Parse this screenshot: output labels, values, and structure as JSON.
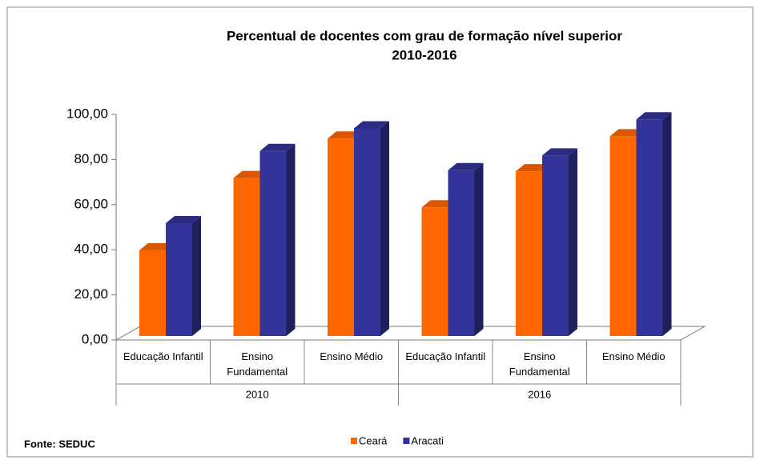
{
  "chart_data": {
    "type": "bar3d",
    "title": "Percentual de docentes com grau de formação nível superior",
    "subtitle": "2010-2016",
    "categories": [
      "Educação Infantil",
      "Ensino Fundamental",
      "Ensino Médio",
      "Educação Infantil",
      "Ensino Fundamental",
      "Ensino Médio"
    ],
    "x_groups": [
      "2010",
      "2016"
    ],
    "series": [
      {
        "name": "Ceará",
        "color": "#ff6600",
        "values": [
          38,
          70,
          87.5,
          57,
          73,
          88.5
        ]
      },
      {
        "name": "Aracati",
        "color": "#333399",
        "values": [
          50,
          82,
          92,
          73.5,
          80,
          96
        ]
      }
    ],
    "ylim": [
      0,
      100
    ],
    "yticks": [
      {
        "value": 0,
        "label": "0,00"
      },
      {
        "value": 20,
        "label": "20,00"
      },
      {
        "value": 40,
        "label": "40,00"
      },
      {
        "value": 60,
        "label": "60,00"
      },
      {
        "value": 80,
        "label": "80,00"
      },
      {
        "value": 100,
        "label": "100,00"
      }
    ],
    "source": "Fonte: SEDUC",
    "legend": "bottom"
  }
}
